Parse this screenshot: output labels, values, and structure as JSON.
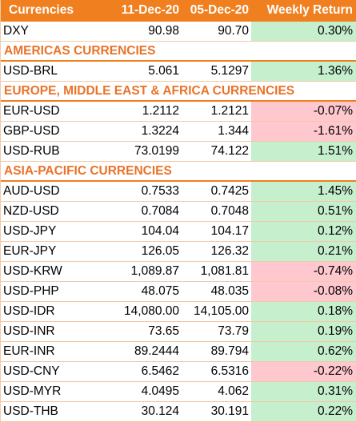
{
  "header": {
    "currencies": "Currencies",
    "date1": "11-Dec-20",
    "date2": "05-Dec-20",
    "weekly_return": "Weekly Return"
  },
  "rows": [
    {
      "type": "data",
      "currency": "DXY",
      "v1": "90.98",
      "v2": "90.70",
      "ret": "0.30%",
      "sign": "pos"
    },
    {
      "type": "section",
      "label": "AMERICAS CURRENCIES"
    },
    {
      "type": "data",
      "currency": "USD-BRL",
      "v1": "5.061",
      "v2": "5.1297",
      "ret": "1.36%",
      "sign": "pos"
    },
    {
      "type": "section",
      "label": "EUROPE, MIDDLE EAST & AFRICA CURRENCIES"
    },
    {
      "type": "data",
      "currency": "EUR-USD",
      "v1": "1.2112",
      "v2": "1.2121",
      "ret": "-0.07%",
      "sign": "neg"
    },
    {
      "type": "data",
      "currency": "GBP-USD",
      "v1": "1.3224",
      "v2": "1.344",
      "ret": "-1.61%",
      "sign": "neg"
    },
    {
      "type": "data",
      "currency": "USD-RUB",
      "v1": "73.0199",
      "v2": "74.122",
      "ret": "1.51%",
      "sign": "pos"
    },
    {
      "type": "section",
      "label": "ASIA-PACIFIC CURRENCIES"
    },
    {
      "type": "data",
      "currency": "AUD-USD",
      "v1": "0.7533",
      "v2": "0.7425",
      "ret": "1.45%",
      "sign": "pos"
    },
    {
      "type": "data",
      "currency": "NZD-USD",
      "v1": "0.7084",
      "v2": "0.7048",
      "ret": "0.51%",
      "sign": "pos"
    },
    {
      "type": "data",
      "currency": "USD-JPY",
      "v1": "104.04",
      "v2": "104.17",
      "ret": "0.12%",
      "sign": "pos"
    },
    {
      "type": "data",
      "currency": "EUR-JPY",
      "v1": "126.05",
      "v2": "126.32",
      "ret": "0.21%",
      "sign": "pos"
    },
    {
      "type": "data",
      "currency": "USD-KRW",
      "v1": "1,089.87",
      "v2": "1,081.81",
      "ret": "-0.74%",
      "sign": "neg"
    },
    {
      "type": "data",
      "currency": "USD-PHP",
      "v1": "48.075",
      "v2": "48.035",
      "ret": "-0.08%",
      "sign": "neg"
    },
    {
      "type": "data",
      "currency": "USD-IDR",
      "v1": "14,080.00",
      "v2": "14,105.00",
      "ret": "0.18%",
      "sign": "pos"
    },
    {
      "type": "data",
      "currency": "USD-INR",
      "v1": "73.65",
      "v2": "73.79",
      "ret": "0.19%",
      "sign": "pos"
    },
    {
      "type": "data",
      "currency": "EUR-INR",
      "v1": "89.2444",
      "v2": "89.794",
      "ret": "0.62%",
      "sign": "pos"
    },
    {
      "type": "data",
      "currency": "USD-CNY",
      "v1": "6.5462",
      "v2": "6.5316",
      "ret": "-0.22%",
      "sign": "neg"
    },
    {
      "type": "data",
      "currency": "USD-MYR",
      "v1": "4.0495",
      "v2": "4.062",
      "ret": "0.31%",
      "sign": "pos"
    },
    {
      "type": "data",
      "currency": "USD-THB",
      "v1": "30.124",
      "v2": "30.191",
      "ret": "0.22%",
      "sign": "pos"
    }
  ],
  "colors": {
    "header_bg": "#f07f1f",
    "section_text": "#e9732a",
    "positive_bg": "#c6efce",
    "negative_bg": "#ffc7ce"
  }
}
